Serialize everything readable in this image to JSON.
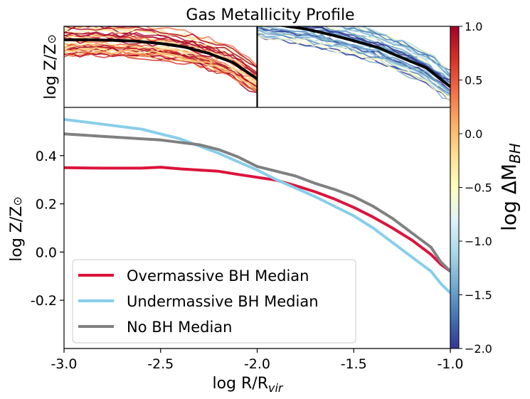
{
  "chart_data": {
    "title": "Gas Metallicity Profile",
    "type": "line",
    "xlabel": "log R/R",
    "xlabel_sub": "vir",
    "ylabel": "log Z/Z",
    "ylabel_symbol": "⊙",
    "xlim": [
      -3.0,
      -1.0
    ],
    "ylim": [
      -0.4,
      0.6
    ],
    "x_ticks": [
      -3.0,
      -2.5,
      -2.0,
      -1.5,
      -1.0
    ],
    "x_tick_labels": [
      "-3.0",
      "-2.5",
      "-2.0",
      "-1.5",
      "-1.0"
    ],
    "y_ticks": [
      -0.2,
      0.0,
      0.2,
      0.4
    ],
    "y_tick_labels": [
      "-0.2",
      "0.0",
      "0.2",
      "0.4"
    ],
    "legend_position": "lower-left",
    "grid": false,
    "series": [
      {
        "name": "Overmassive BH Median",
        "color": "#DC143C",
        "x": [
          -3.0,
          -2.8,
          -2.6,
          -2.5,
          -2.4,
          -2.2,
          -2.1,
          -2.0,
          -1.9,
          -1.8,
          -1.7,
          -1.6,
          -1.5,
          -1.4,
          -1.3,
          -1.2,
          -1.1,
          -1.05,
          -1.0
        ],
        "y": [
          0.35,
          0.348,
          0.348,
          0.352,
          0.345,
          0.335,
          0.322,
          0.31,
          0.298,
          0.275,
          0.25,
          0.22,
          0.185,
          0.145,
          0.1,
          0.05,
          -0.01,
          -0.05,
          -0.08
        ]
      },
      {
        "name": "Undermassive BH Median",
        "color": "#87CEEB",
        "x": [
          -3.0,
          -2.8,
          -2.6,
          -2.5,
          -2.4,
          -2.3,
          -2.2,
          -2.1,
          -2.0,
          -1.9,
          -1.8,
          -1.7,
          -1.6,
          -1.5,
          -1.4,
          -1.3,
          -1.2,
          -1.1,
          -1.05,
          -1.0
        ],
        "y": [
          0.55,
          0.53,
          0.51,
          0.49,
          0.47,
          0.44,
          0.41,
          0.375,
          0.34,
          0.3,
          0.265,
          0.23,
          0.19,
          0.15,
          0.1,
          0.04,
          -0.02,
          -0.08,
          -0.13,
          -0.17
        ]
      },
      {
        "name": "No BH Median",
        "color": "#808080",
        "x": [
          -3.0,
          -2.8,
          -2.6,
          -2.5,
          -2.4,
          -2.3,
          -2.2,
          -2.1,
          -2.0,
          -1.9,
          -1.8,
          -1.7,
          -1.6,
          -1.5,
          -1.4,
          -1.3,
          -1.2,
          -1.1,
          -1.05,
          -1.0
        ],
        "y": [
          0.49,
          0.48,
          0.47,
          0.465,
          0.455,
          0.445,
          0.425,
          0.395,
          0.355,
          0.335,
          0.315,
          0.285,
          0.26,
          0.23,
          0.19,
          0.14,
          0.08,
          0.02,
          -0.04,
          -0.08
        ]
      }
    ],
    "insets": [
      {
        "name": "overmassive-inset",
        "ylabel": "log Z/Z",
        "median_color": "#000000",
        "median_x": [
          -3.0,
          -2.75,
          -2.5,
          -2.25,
          -2.0,
          -1.75,
          -1.5,
          -1.25,
          -1.0
        ],
        "median_y": [
          0.35,
          0.35,
          0.345,
          0.335,
          0.31,
          0.27,
          0.2,
          0.1,
          -0.08
        ]
      },
      {
        "name": "undermassive-inset",
        "median_color": "#000000",
        "median_x": [
          -3.0,
          -2.75,
          -2.5,
          -2.25,
          -2.0,
          -1.75,
          -1.5,
          -1.25,
          -1.0
        ],
        "median_y": [
          0.55,
          0.51,
          0.47,
          0.41,
          0.34,
          0.265,
          0.15,
          0.04,
          -0.17
        ]
      }
    ],
    "colorbar": {
      "label": "log ΔM",
      "label_sub": "BH",
      "range": [
        -2.0,
        1.0
      ],
      "ticks": [
        1.0,
        0.5,
        0.0,
        -0.5,
        -1.0,
        -1.5,
        -2.0
      ],
      "tick_labels": [
        "1.0",
        "0.5",
        "0.0",
        "−0.5",
        "−1.0",
        "−1.5",
        "−2.0"
      ],
      "colormap": "RdYlBu",
      "color_stops": [
        "#A50026",
        "#D73027",
        "#F46D43",
        "#FDAE61",
        "#FEE090",
        "#FFFFBF",
        "#E0F3F8",
        "#ABD9E9",
        "#74ADD1",
        "#4575B4",
        "#313695"
      ]
    }
  }
}
